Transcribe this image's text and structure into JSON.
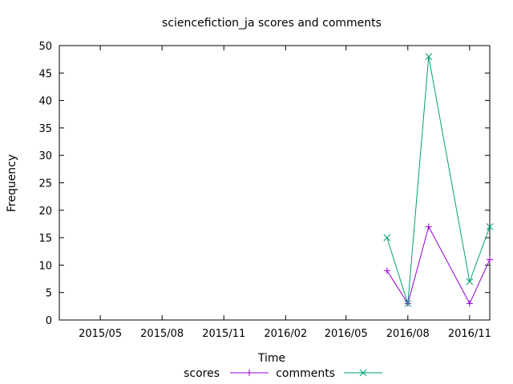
{
  "chart_data": {
    "type": "line",
    "title": "sciencefiction_ja scores and comments",
    "xlabel": "Time",
    "ylabel": "Frequency",
    "ylim": [
      0,
      50
    ],
    "yticks": [
      0,
      5,
      10,
      15,
      20,
      25,
      30,
      35,
      40,
      45,
      50
    ],
    "xlim": [
      "2015-03-01",
      "2016-12-01"
    ],
    "xticks": [
      {
        "date": "2015-05-01",
        "label": "2015/05"
      },
      {
        "date": "2015-08-01",
        "label": "2015/08"
      },
      {
        "date": "2015-11-01",
        "label": "2015/11"
      },
      {
        "date": "2016-02-01",
        "label": "2016/02"
      },
      {
        "date": "2016-05-01",
        "label": "2016/05"
      },
      {
        "date": "2016-08-01",
        "label": "2016/08"
      },
      {
        "date": "2016-11-01",
        "label": "2016/11"
      }
    ],
    "grid": false,
    "legend_position": "bottom-center",
    "series": [
      {
        "name": "scores",
        "color": "#9400d3",
        "marker": "plus",
        "points": [
          {
            "x": "2016-07-01",
            "y": 9
          },
          {
            "x": "2016-08-01",
            "y": 3
          },
          {
            "x": "2016-09-01",
            "y": 17
          },
          {
            "x": "2016-11-01",
            "y": 3
          },
          {
            "x": "2016-12-01",
            "y": 11
          }
        ]
      },
      {
        "name": "comments",
        "color": "#009e73",
        "marker": "cross",
        "points": [
          {
            "x": "2016-07-01",
            "y": 15
          },
          {
            "x": "2016-08-01",
            "y": 3
          },
          {
            "x": "2016-09-01",
            "y": 48
          },
          {
            "x": "2016-11-01",
            "y": 7
          },
          {
            "x": "2016-12-01",
            "y": 17
          }
        ]
      }
    ]
  }
}
